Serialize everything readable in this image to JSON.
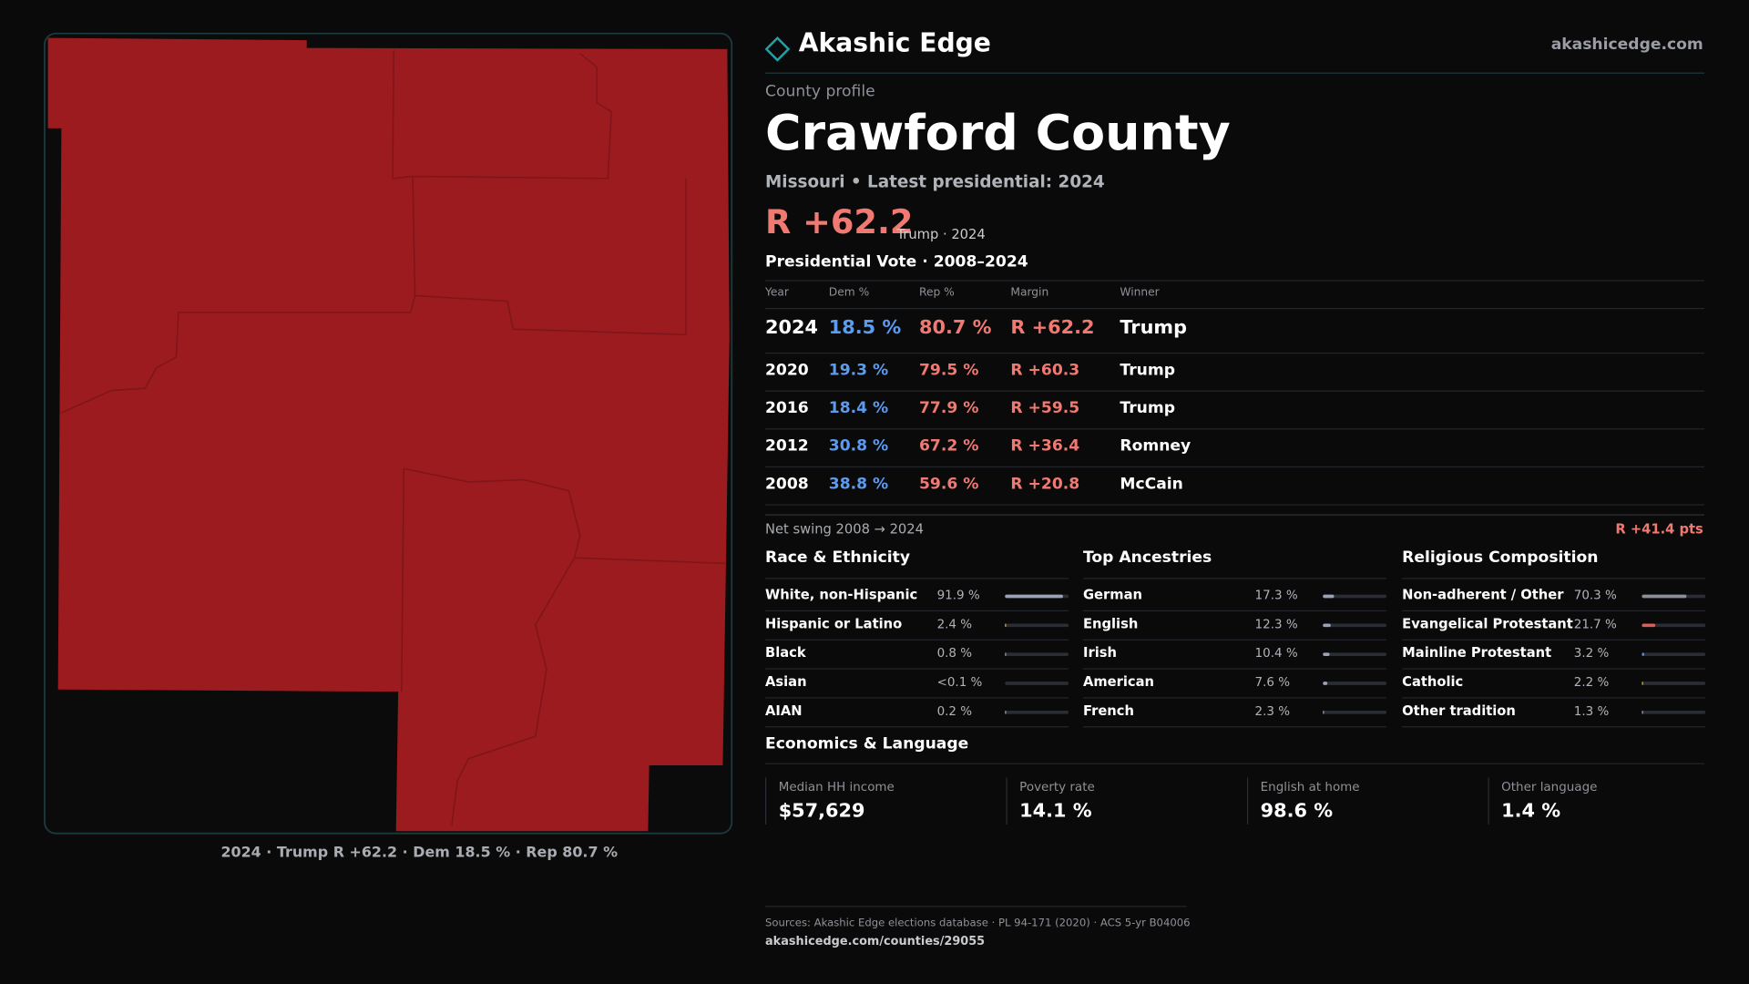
{
  "header": {
    "brand": "Akashic Edge",
    "site": "akashicedge.com"
  },
  "profile": {
    "kicker": "County profile",
    "name": "Crawford County",
    "subtitle": "Missouri • Latest presidential: 2024",
    "margin": "R +62.2",
    "margin_note": "Trump · 2024"
  },
  "map": {
    "caption": "2024 · Trump R +62.2 · Dem 18.5 % · Rep 80.7 %"
  },
  "votes": {
    "title": "Presidential Vote · 2008–2024",
    "columns": [
      "Year",
      "Dem %",
      "Rep %",
      "Margin",
      "Winner"
    ],
    "rows": [
      [
        "2024",
        "18.5 %",
        "80.7 %",
        "R +62.2",
        "Trump"
      ],
      [
        "2020",
        "19.3 %",
        "79.5 %",
        "R +60.3",
        "Trump"
      ],
      [
        "2016",
        "18.4 %",
        "77.9 %",
        "R +59.5",
        "Trump"
      ],
      [
        "2012",
        "30.8 %",
        "67.2 %",
        "R +36.4",
        "Romney"
      ],
      [
        "2008",
        "38.8 %",
        "59.6 %",
        "R +20.8",
        "McCain"
      ]
    ]
  },
  "swing": {
    "label": "Net swing 2008 → 2024",
    "value": "R +41.4 pts"
  },
  "panels": [
    {
      "title": "Race & Ethnicity",
      "rows": [
        {
          "name": "White, non-Hispanic",
          "share": {
            "value": 91.9,
            "label": "91.9 %"
          },
          "color": "#9aa3b5"
        },
        {
          "name": "Hispanic or Latino",
          "share": {
            "value": 2.4,
            "label": "2.4 %"
          },
          "color": "#e0b030"
        },
        {
          "name": "Black",
          "share": {
            "value": 0.8,
            "label": "0.8 %"
          },
          "color": "#9aa3b5"
        },
        {
          "name": "Asian",
          "share": {
            "value": 0.1,
            "label": "<0.1 %"
          },
          "color": "#9aa3b5"
        },
        {
          "name": "AIAN",
          "share": {
            "value": 0.2,
            "label": "0.2 %"
          },
          "color": "#9aa3b5"
        }
      ]
    },
    {
      "title": "Top Ancestries",
      "rows": [
        {
          "name": "German",
          "share": {
            "value": 17.3,
            "label": "17.3 %"
          },
          "color": "#9aa3b5"
        },
        {
          "name": "English",
          "share": {
            "value": 12.3,
            "label": "12.3 %"
          },
          "color": "#9aa3b5"
        },
        {
          "name": "Irish",
          "share": {
            "value": 10.4,
            "label": "10.4 %"
          },
          "color": "#9aa3b5"
        },
        {
          "name": "American",
          "share": {
            "value": 7.6,
            "label": "7.6 %"
          },
          "color": "#9aa3b5"
        },
        {
          "name": "French",
          "share": {
            "value": 2.3,
            "label": "2.3 %"
          },
          "color": "#9aa3b5"
        }
      ]
    },
    {
      "title": "Religious Composition",
      "rows": [
        {
          "name": "Non-adherent / Other",
          "share": {
            "value": 70.3,
            "label": "70.3 %"
          },
          "color": "#8a8f9a"
        },
        {
          "name": "Evangelical Protestant",
          "share": {
            "value": 21.7,
            "label": "21.7 %"
          },
          "color": "#e05a5a"
        },
        {
          "name": "Mainline Protestant",
          "share": {
            "value": 3.2,
            "label": "3.2 %"
          },
          "color": "#5b8fe0"
        },
        {
          "name": "Catholic",
          "share": {
            "value": 2.2,
            "label": "2.2 %"
          },
          "color": "#e0b030"
        },
        {
          "name": "Other tradition",
          "share": {
            "value": 1.3,
            "label": "1.3 %"
          },
          "color": "#9aa3b5"
        }
      ]
    }
  ],
  "economics": {
    "title": "Economics & Language",
    "stats": [
      {
        "label": "Median HH income",
        "value": "$57,629"
      },
      {
        "label": "Poverty rate",
        "value": "14.1 %"
      },
      {
        "label": "English at home",
        "value": "98.6 %"
      },
      {
        "label": "Other language",
        "value": "1.4 %"
      }
    ]
  },
  "footer": {
    "sources": "Sources: Akashic Edge elections database · PL 94-171 (2020) · ACS 5-yr B04006",
    "url": "akashicedge.com/counties/29055"
  }
}
